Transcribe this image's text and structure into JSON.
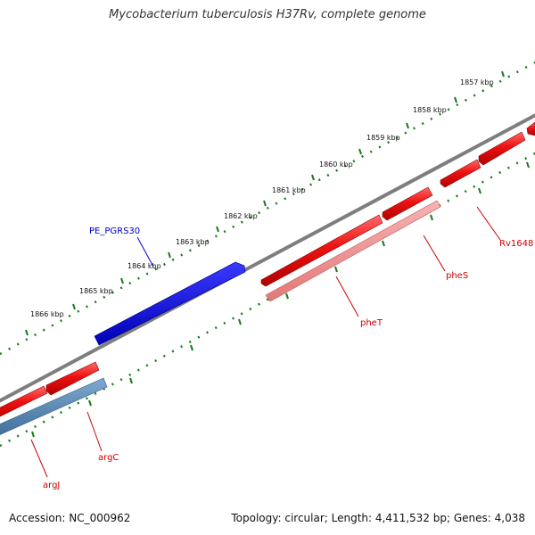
{
  "title": "Mycobacterium tuberculosis H37Rv, complete genome",
  "footer": {
    "accession": "Accession: NC_000962",
    "info": "Topology: circular; Length: 4,411,532 bp; Genes: 4,038"
  },
  "scale_labels": [
    "1857 kbp",
    "1858 kbp",
    "1859 kbp",
    "1860 kbp",
    "1861 kbp",
    "1862 kbp",
    "1863 kbp",
    "1864 kbp",
    "1865 kbp",
    "1866 kbp"
  ],
  "genes": [
    {
      "label": "PE_PGRS30",
      "strand": "+",
      "color": "#0000e0"
    },
    {
      "label": "pheT",
      "strand": "-",
      "color": "#e02020"
    },
    {
      "label": "pheS",
      "strand": "-",
      "color": "#e02020"
    },
    {
      "label": "Rv1648",
      "strand": "-",
      "color": "#e02020"
    },
    {
      "label": "argC",
      "strand": "-",
      "color": "#e02020"
    },
    {
      "label": "argJ",
      "strand": "-",
      "color": "#e02020"
    }
  ],
  "colors": {
    "backbone": "#808080",
    "scale_ticks": "#1a7a1a",
    "forward_cds": "#0000e0",
    "reverse_cds": "#ee1111",
    "gene_label_blue": "#0000cc",
    "gene_label_red": "#cc0000"
  }
}
